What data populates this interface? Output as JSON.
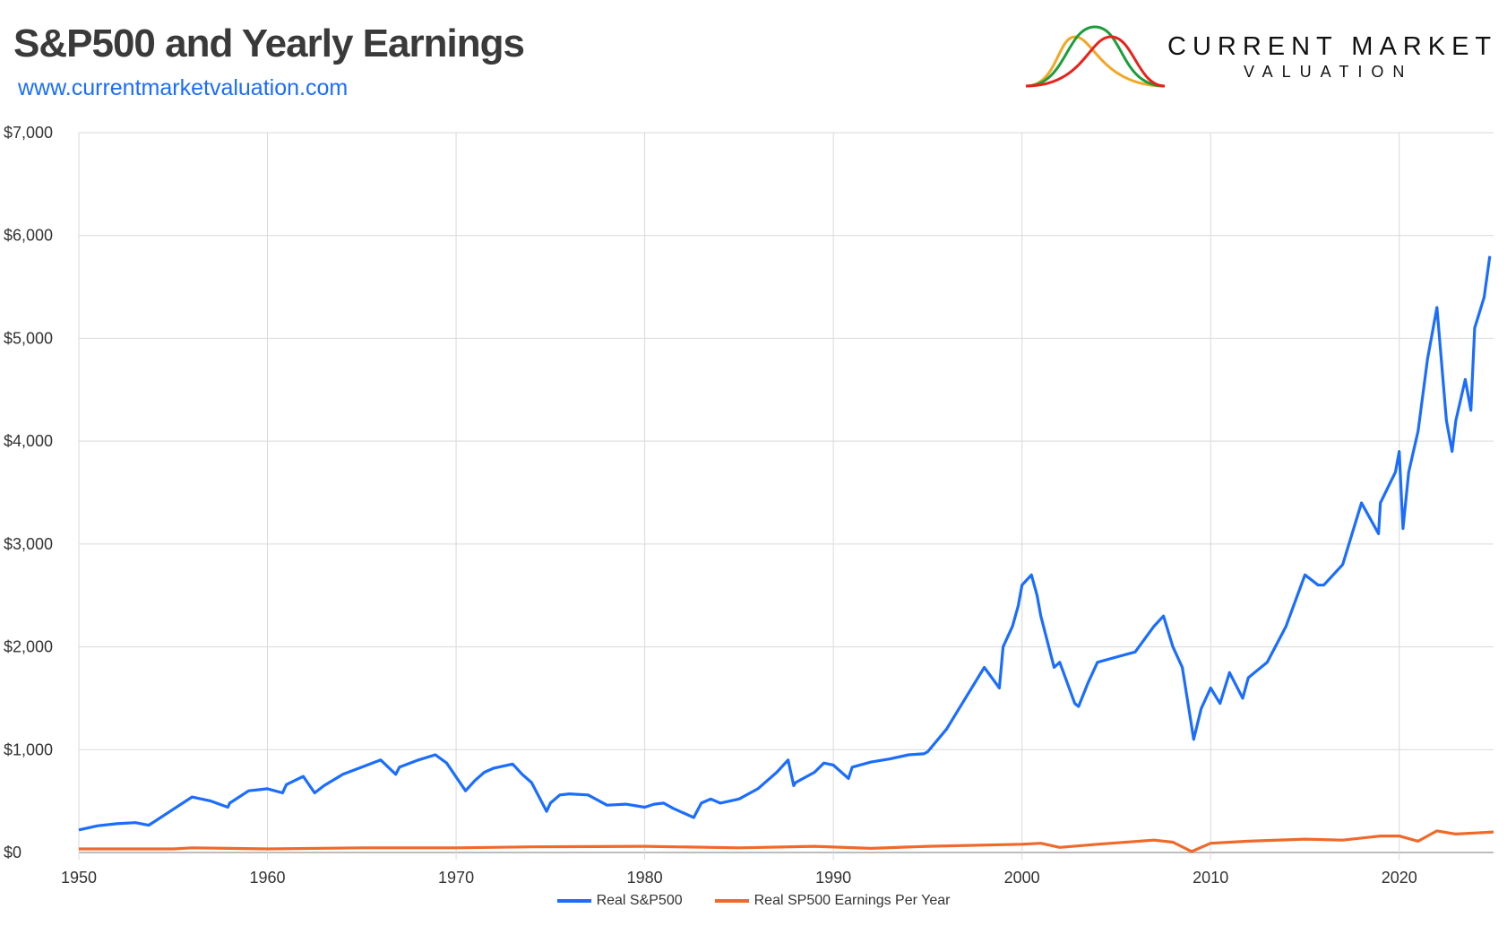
{
  "title": "S&P500 and Yearly Earnings",
  "url": "www.currentmarketvaluation.com",
  "logo": {
    "line1": "CURRENT MARKET",
    "line2": "VALUATION",
    "curve_colors": [
      "#f5a623",
      "#1a9e3a",
      "#e8221b"
    ]
  },
  "chart_data": {
    "type": "line",
    "title": "S&P500 and Yearly Earnings",
    "xlim": [
      1950,
      2025
    ],
    "ylim": [
      0,
      7000
    ],
    "x_ticks": [
      "1950",
      "1960",
      "1970",
      "1980",
      "1990",
      "2000",
      "2010",
      "2020"
    ],
    "y_ticks": [
      "$0",
      "$1,000",
      "$2,000",
      "$3,000",
      "$4,000",
      "$5,000",
      "$6,000",
      "$7,000"
    ],
    "grid": true,
    "legend_position": "bottom",
    "series": [
      {
        "name": "Real S&P500",
        "color": "#1a6dff",
        "points": [
          [
            1950,
            220
          ],
          [
            1951,
            260
          ],
          [
            1952,
            280
          ],
          [
            1953,
            290
          ],
          [
            1953.7,
            265
          ],
          [
            1954,
            300
          ],
          [
            1955,
            420
          ],
          [
            1956,
            540
          ],
          [
            1957,
            500
          ],
          [
            1957.9,
            440
          ],
          [
            1958,
            480
          ],
          [
            1959,
            600
          ],
          [
            1960,
            620
          ],
          [
            1960.8,
            580
          ],
          [
            1961,
            660
          ],
          [
            1961.9,
            740
          ],
          [
            1962.5,
            580
          ],
          [
            1963,
            650
          ],
          [
            1964,
            760
          ],
          [
            1965,
            830
          ],
          [
            1966,
            900
          ],
          [
            1966.8,
            760
          ],
          [
            1967,
            830
          ],
          [
            1968,
            900
          ],
          [
            1968.9,
            950
          ],
          [
            1969.5,
            870
          ],
          [
            1970.5,
            600
          ],
          [
            1971,
            700
          ],
          [
            1971.5,
            780
          ],
          [
            1972,
            820
          ],
          [
            1973,
            860
          ],
          [
            1973.5,
            760
          ],
          [
            1974,
            680
          ],
          [
            1974.8,
            400
          ],
          [
            1975,
            480
          ],
          [
            1975.5,
            560
          ],
          [
            1976,
            570
          ],
          [
            1977,
            560
          ],
          [
            1978,
            460
          ],
          [
            1979,
            470
          ],
          [
            1980,
            440
          ],
          [
            1980.5,
            470
          ],
          [
            1981,
            480
          ],
          [
            1981.5,
            430
          ],
          [
            1982.6,
            340
          ],
          [
            1983,
            480
          ],
          [
            1983.5,
            520
          ],
          [
            1984,
            480
          ],
          [
            1985,
            520
          ],
          [
            1986,
            620
          ],
          [
            1987,
            780
          ],
          [
            1987.6,
            900
          ],
          [
            1987.9,
            650
          ],
          [
            1988,
            680
          ],
          [
            1989,
            780
          ],
          [
            1989.5,
            870
          ],
          [
            1990,
            850
          ],
          [
            1990.8,
            720
          ],
          [
            1991,
            830
          ],
          [
            1992,
            880
          ],
          [
            1993,
            910
          ],
          [
            1994,
            950
          ],
          [
            1994.8,
            960
          ],
          [
            1995,
            980
          ],
          [
            1996,
            1200
          ],
          [
            1997,
            1500
          ],
          [
            1998,
            1800
          ],
          [
            1998.8,
            1600
          ],
          [
            1999,
            2000
          ],
          [
            1999.5,
            2200
          ],
          [
            1999.8,
            2400
          ],
          [
            2000,
            2600
          ],
          [
            2000.5,
            2700
          ],
          [
            2000.8,
            2500
          ],
          [
            2001,
            2300
          ],
          [
            2001.7,
            1800
          ],
          [
            2002,
            1850
          ],
          [
            2002.8,
            1450
          ],
          [
            2003,
            1420
          ],
          [
            2003.5,
            1650
          ],
          [
            2004,
            1850
          ],
          [
            2005,
            1900
          ],
          [
            2006,
            1950
          ],
          [
            2007,
            2200
          ],
          [
            2007.5,
            2300
          ],
          [
            2008,
            2000
          ],
          [
            2008.5,
            1800
          ],
          [
            2009.1,
            1100
          ],
          [
            2009.5,
            1400
          ],
          [
            2010,
            1600
          ],
          [
            2010.5,
            1450
          ],
          [
            2011,
            1750
          ],
          [
            2011.7,
            1500
          ],
          [
            2012,
            1700
          ],
          [
            2013,
            1850
          ],
          [
            2014,
            2200
          ],
          [
            2015,
            2700
          ],
          [
            2015.7,
            2600
          ],
          [
            2016,
            2600
          ],
          [
            2017,
            2800
          ],
          [
            2018,
            3400
          ],
          [
            2018.9,
            3100
          ],
          [
            2019,
            3400
          ],
          [
            2019.8,
            3700
          ],
          [
            2020,
            3900
          ],
          [
            2020.2,
            3150
          ],
          [
            2020.5,
            3700
          ],
          [
            2021,
            4100
          ],
          [
            2021.5,
            4800
          ],
          [
            2022,
            5300
          ],
          [
            2022.5,
            4200
          ],
          [
            2022.8,
            3900
          ],
          [
            2023,
            4200
          ],
          [
            2023.5,
            4600
          ],
          [
            2023.8,
            4300
          ],
          [
            2024,
            5100
          ],
          [
            2024.5,
            5400
          ],
          [
            2024.8,
            5800
          ]
        ]
      },
      {
        "name": "Real SP500 Earnings Per Year",
        "color": "#f0692a",
        "points": [
          [
            1950,
            35
          ],
          [
            1955,
            35
          ],
          [
            1956,
            45
          ],
          [
            1960,
            35
          ],
          [
            1965,
            45
          ],
          [
            1970,
            45
          ],
          [
            1974,
            55
          ],
          [
            1980,
            60
          ],
          [
            1985,
            45
          ],
          [
            1989,
            60
          ],
          [
            1992,
            40
          ],
          [
            1995,
            60
          ],
          [
            2000,
            80
          ],
          [
            2001,
            90
          ],
          [
            2002,
            50
          ],
          [
            2004,
            80
          ],
          [
            2007,
            120
          ],
          [
            2008,
            100
          ],
          [
            2009,
            10
          ],
          [
            2010,
            90
          ],
          [
            2012,
            110
          ],
          [
            2015,
            130
          ],
          [
            2017,
            120
          ],
          [
            2019,
            160
          ],
          [
            2020,
            160
          ],
          [
            2021,
            110
          ],
          [
            2022,
            210
          ],
          [
            2023,
            180
          ],
          [
            2025,
            200
          ]
        ]
      }
    ]
  }
}
